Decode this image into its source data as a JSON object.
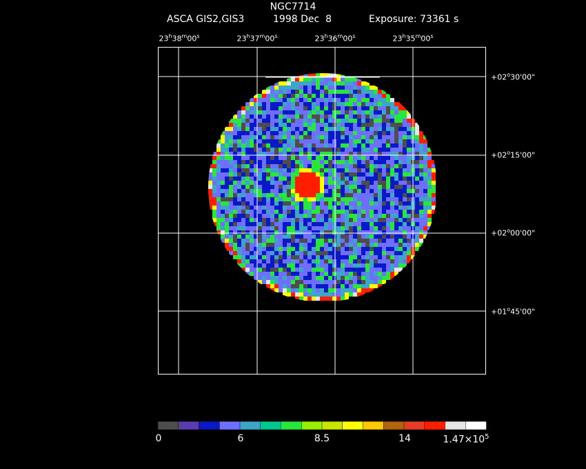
{
  "header": {
    "object": "NGC7714",
    "instrument": "ASCA GIS2,GIS3",
    "date": "1998 Dec  8",
    "exposure": "Exposure: 73361 s"
  },
  "axes": {
    "ra_labels": [
      {
        "h": "23",
        "m": "38",
        "s": "00"
      },
      {
        "h": "23",
        "m": "37",
        "s": "00"
      },
      {
        "h": "23",
        "m": "36",
        "s": "00"
      },
      {
        "h": "23",
        "m": "35",
        "s": "00"
      }
    ],
    "dec_labels": [
      {
        "d": "+02",
        "m": "30",
        "s": "00"
      },
      {
        "d": "+02",
        "m": "15",
        "s": "00"
      },
      {
        "d": "+02",
        "m": "00",
        "s": "00"
      },
      {
        "d": "+01",
        "m": "45",
        "s": "00"
      }
    ]
  },
  "colorbar": {
    "colors": [
      "#4d4d4d",
      "#5a3cb0",
      "#0a19c8",
      "#6e6eff",
      "#3ca5c8",
      "#00c88c",
      "#28e63c",
      "#96f000",
      "#c8e600",
      "#ffff00",
      "#ffc800",
      "#b4640a",
      "#e63c28",
      "#ff1e00",
      "#e6e6e6",
      "#ffffff"
    ],
    "tick_labels": [
      "0",
      "6",
      "8.5",
      "14"
    ],
    "max_label_base": "1.47×10",
    "max_label_exp": "5"
  }
}
